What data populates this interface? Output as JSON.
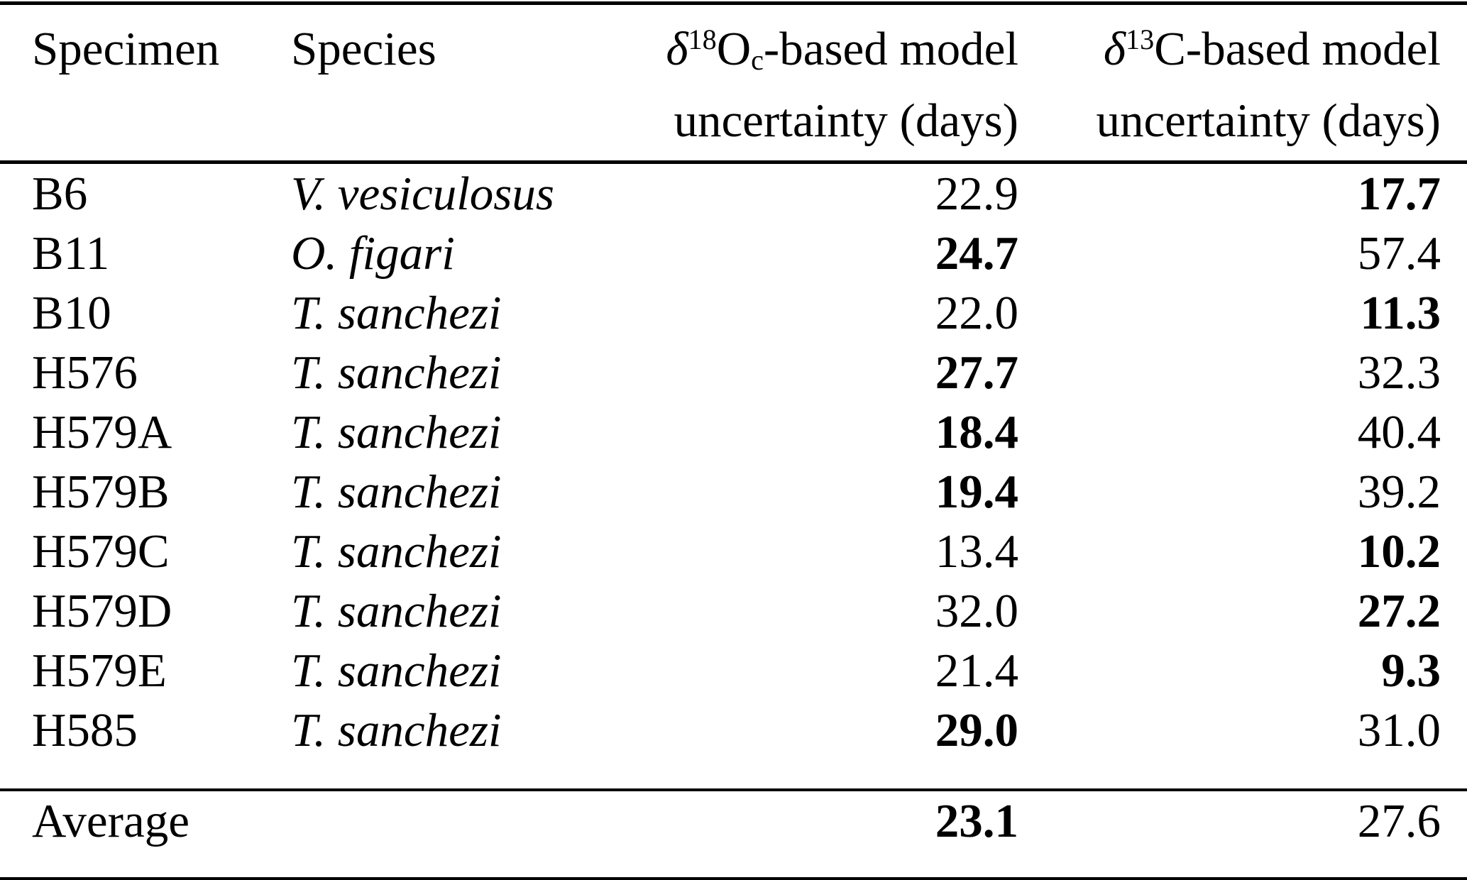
{
  "table": {
    "colors": {
      "text": "#000000",
      "background": "#ffffff",
      "rule": "#000000"
    },
    "columns": {
      "specimen_label": "Specimen",
      "species_label": "Species",
      "o18": {
        "delta": "δ",
        "sup": "18",
        "base": "O",
        "sub": "c",
        "rest": "-based model",
        "line2": "uncertainty (days)"
      },
      "c13": {
        "delta": "δ",
        "sup": "13",
        "base": "C",
        "rest": "-based model",
        "line2": "uncertainty (days)"
      }
    },
    "rows": [
      {
        "specimen": "B6",
        "species": "V. vesiculosus",
        "o18": "22.9",
        "o18_bold": false,
        "c13": "17.7",
        "c13_bold": true
      },
      {
        "specimen": "B11",
        "species": "O. figari",
        "o18": "24.7",
        "o18_bold": true,
        "c13": "57.4",
        "c13_bold": false
      },
      {
        "specimen": "B10",
        "species": "T. sanchezi",
        "o18": "22.0",
        "o18_bold": false,
        "c13": "11.3",
        "c13_bold": true
      },
      {
        "specimen": "H576",
        "species": "T. sanchezi",
        "o18": "27.7",
        "o18_bold": true,
        "c13": "32.3",
        "c13_bold": false
      },
      {
        "specimen": "H579A",
        "species": "T. sanchezi",
        "o18": "18.4",
        "o18_bold": true,
        "c13": "40.4",
        "c13_bold": false
      },
      {
        "specimen": "H579B",
        "species": "T. sanchezi",
        "o18": "19.4",
        "o18_bold": true,
        "c13": "39.2",
        "c13_bold": false
      },
      {
        "specimen": "H579C",
        "species": "T. sanchezi",
        "o18": "13.4",
        "o18_bold": false,
        "c13": "10.2",
        "c13_bold": true
      },
      {
        "specimen": "H579D",
        "species": "T. sanchezi",
        "o18": "32.0",
        "o18_bold": false,
        "c13": "27.2",
        "c13_bold": true
      },
      {
        "specimen": "H579E",
        "species": "T. sanchezi",
        "o18": "21.4",
        "o18_bold": false,
        "c13": "9.3",
        "c13_bold": true
      },
      {
        "specimen": "H585",
        "species": "T. sanchezi",
        "o18": "29.0",
        "o18_bold": true,
        "c13": "31.0",
        "c13_bold": false
      }
    ],
    "footer": {
      "label": "Average",
      "species": "",
      "o18": "23.1",
      "o18_bold": true,
      "c13": "27.6",
      "c13_bold": false
    }
  }
}
